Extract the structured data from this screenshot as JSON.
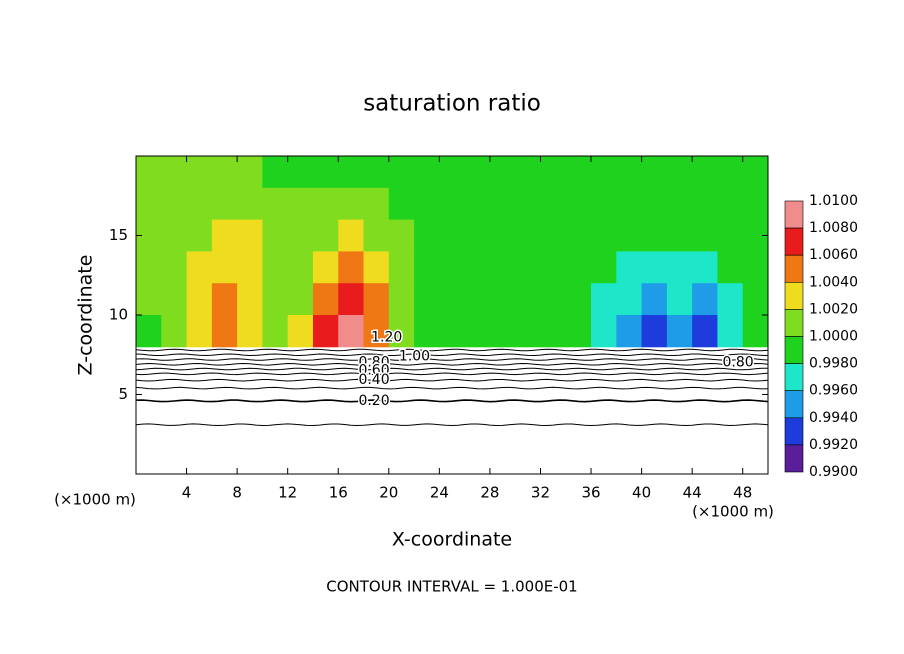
{
  "chart_data": {
    "type": "contour",
    "title": "saturation ratio",
    "x_label": "X-coordinate",
    "y_label": "Z-coordinate",
    "x_unit": "(×1000 m)",
    "y_unit": "(×1000 m)",
    "footer": "CONTOUR INTERVAL = 1.000E-01",
    "xlim": [
      0,
      50
    ],
    "ylim": [
      0,
      20
    ],
    "xticks": [
      4,
      8,
      12,
      16,
      20,
      24,
      28,
      32,
      36,
      40,
      44,
      48
    ],
    "yticks": [
      5,
      10,
      15
    ],
    "x": [
      1,
      3,
      5,
      7,
      9,
      11,
      13,
      15,
      17,
      19,
      21,
      23,
      25,
      27,
      29,
      31,
      33,
      35,
      37,
      39,
      41,
      43,
      45,
      47,
      49
    ],
    "z": [
      19,
      17,
      15,
      13,
      11,
      9
    ],
    "field": [
      [
        1.0,
        1.0,
        1.0,
        1.0,
        1.0,
        0.999,
        0.999,
        0.999,
        0.999,
        0.999,
        0.999,
        0.999,
        0.999,
        0.999,
        0.999,
        0.999,
        0.999,
        0.999,
        0.999,
        0.999,
        0.999,
        0.999,
        0.999,
        0.999,
        0.999
      ],
      [
        1.0,
        1.0,
        1.0,
        1.001,
        1.0,
        1.0,
        1.0,
        1.001,
        1.001,
        1.0,
        0.999,
        0.999,
        0.999,
        0.999,
        0.999,
        0.999,
        0.999,
        0.999,
        0.999,
        0.999,
        0.999,
        0.999,
        0.999,
        0.999,
        0.999
      ],
      [
        1.0,
        1.0,
        1.001,
        1.002,
        1.002,
        1.0,
        1.0,
        1.001,
        1.002,
        1.001,
        1.0,
        0.999,
        0.999,
        0.999,
        0.999,
        0.999,
        0.999,
        0.999,
        0.999,
        0.998,
        0.998,
        0.998,
        0.998,
        0.998,
        0.999
      ],
      [
        1.0,
        1.0,
        1.002,
        1.003,
        1.002,
        1.0,
        1.0,
        1.002,
        1.004,
        1.002,
        1.0,
        0.999,
        0.999,
        0.999,
        0.999,
        0.999,
        0.999,
        0.999,
        0.998,
        0.997,
        0.997,
        0.997,
        0.997,
        0.998,
        0.999
      ],
      [
        1.0,
        1.001,
        1.003,
        1.004,
        1.003,
        1.001,
        1.001,
        1.004,
        1.006,
        1.004,
        1.0,
        0.999,
        0.999,
        0.999,
        0.999,
        0.999,
        0.999,
        0.998,
        0.997,
        0.996,
        0.995,
        0.996,
        0.995,
        0.997,
        0.998
      ],
      [
        0.999,
        1.001,
        1.003,
        1.005,
        1.003,
        1.001,
        1.002,
        1.006,
        1.009,
        1.005,
        1.0,
        0.999,
        0.999,
        0.999,
        0.999,
        0.999,
        0.998,
        0.998,
        0.997,
        0.994,
        0.993,
        0.994,
        0.993,
        0.996,
        0.998
      ]
    ],
    "colorbar_ticks": [
      {
        "value": 1.01,
        "label": "1.0100"
      },
      {
        "value": 1.008,
        "label": "1.0080"
      },
      {
        "value": 1.006,
        "label": "1.0060"
      },
      {
        "value": 1.004,
        "label": "1.0040"
      },
      {
        "value": 1.002,
        "label": "1.0020"
      },
      {
        "value": 1.0,
        "label": "1.0000"
      },
      {
        "value": 0.998,
        "label": "0.9980"
      },
      {
        "value": 0.996,
        "label": "0.9960"
      },
      {
        "value": 0.994,
        "label": "0.9940"
      },
      {
        "value": 0.992,
        "label": "0.9920"
      },
      {
        "value": 0.99,
        "label": "0.9900"
      }
    ],
    "colors": [
      "#f08c8c",
      "#e81c1c",
      "#f07814",
      "#f0dc1e",
      "#80dc1e",
      "#1ed21e",
      "#1ee6c8",
      "#1e9ce8",
      "#1e3cdc",
      "#5a1e9a"
    ],
    "contours": [
      {
        "level": 0.1,
        "z": 3.1
      },
      {
        "level": 0.2,
        "z": 4.6
      },
      {
        "level": 0.3,
        "z": 5.4
      },
      {
        "level": 0.4,
        "z": 5.9
      },
      {
        "level": 0.5,
        "z": 6.3
      },
      {
        "level": 0.6,
        "z": 6.6
      },
      {
        "level": 0.7,
        "z": 6.9
      },
      {
        "level": 0.8,
        "z": 7.2
      },
      {
        "level": 0.9,
        "z": 7.5
      },
      {
        "level": 1.0,
        "z": 7.8
      }
    ],
    "contour_labels": [
      {
        "label": "1.20",
        "x": 18.6,
        "z": 8.6
      },
      {
        "label": "1.00",
        "x": 20.8,
        "z": 7.4
      },
      {
        "label": "0.80",
        "x": 17.6,
        "z": 7.0
      },
      {
        "label": "0.60",
        "x": 17.6,
        "z": 6.5
      },
      {
        "label": "0.40",
        "x": 17.6,
        "z": 5.9
      },
      {
        "label": "0.20",
        "x": 17.6,
        "z": 4.6
      },
      {
        "label": "0.80",
        "x": 46.4,
        "z": 7.0
      }
    ]
  }
}
